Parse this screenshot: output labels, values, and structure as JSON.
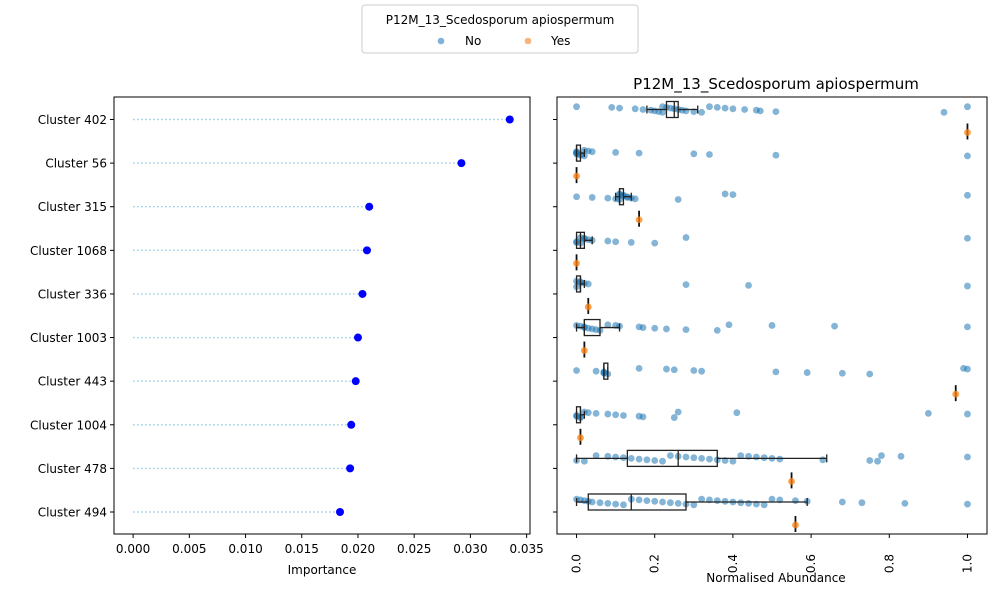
{
  "legend": {
    "title": "P12M_13_Scedosporum apiospermum",
    "entries": [
      {
        "label": "No",
        "color": "#82b1da"
      },
      {
        "label": "Yes",
        "color": "#f7b37c"
      }
    ]
  },
  "chart_data": [
    {
      "type": "lollipop",
      "title": "",
      "xlabel": "Importance",
      "ylabel": "",
      "xlim": [
        -0.0017,
        0.0353
      ],
      "xticks": [
        "0.000",
        "0.005",
        "0.010",
        "0.015",
        "0.020",
        "0.025",
        "0.030",
        "0.035"
      ],
      "grid": false,
      "point_color": "#0000ff",
      "stem_color": "#87ceeb",
      "categories": [
        "Cluster 402",
        "Cluster 56",
        "Cluster 315",
        "Cluster 1068",
        "Cluster 336",
        "Cluster 1003",
        "Cluster 443",
        "Cluster 1004",
        "Cluster 478",
        "Cluster 494"
      ],
      "values": [
        0.0335,
        0.0292,
        0.021,
        0.0208,
        0.0204,
        0.02,
        0.0198,
        0.0194,
        0.0193,
        0.0184
      ]
    },
    {
      "type": "box_strip",
      "title": "P12M_13_Scedosporum apiospermum",
      "xlabel": "Normalised Abundance",
      "ylabel": "",
      "xlim": [
        -0.05,
        1.05
      ],
      "xticks": [
        "0.0",
        "0.2",
        "0.4",
        "0.6",
        "0.8",
        "1.0"
      ],
      "grid": false,
      "colors": {
        "No": "#1f77b4",
        "Yes": "#ff7f0e"
      },
      "categories": [
        "Cluster 402",
        "Cluster 56",
        "Cluster 315",
        "Cluster 1068",
        "Cluster 336",
        "Cluster 1003",
        "Cluster 443",
        "Cluster 1004",
        "Cluster 478",
        "Cluster 494"
      ],
      "boxes": {
        "No": [
          {
            "q1": 0.23,
            "median": 0.25,
            "q3": 0.26,
            "whisker_low": 0.18,
            "whisker_high": 0.31
          },
          {
            "q1": 0.0,
            "median": 0.0,
            "q3": 0.01,
            "whisker_low": 0.0,
            "whisker_high": 0.02
          },
          {
            "q1": 0.11,
            "median": 0.11,
            "q3": 0.12,
            "whisker_low": 0.1,
            "whisker_high": 0.14
          },
          {
            "q1": 0.0,
            "median": 0.01,
            "q3": 0.02,
            "whisker_low": 0.0,
            "whisker_high": 0.04
          },
          {
            "q1": 0.0,
            "median": 0.01,
            "q3": 0.01,
            "whisker_low": 0.0,
            "whisker_high": 0.02
          },
          {
            "q1": 0.02,
            "median": 0.02,
            "q3": 0.06,
            "whisker_low": 0.0,
            "whisker_high": 0.11
          },
          {
            "q1": 0.07,
            "median": 0.07,
            "q3": 0.08,
            "whisker_low": 0.07,
            "whisker_high": 0.08
          },
          {
            "q1": 0.0,
            "median": 0.01,
            "q3": 0.01,
            "whisker_low": 0.0,
            "whisker_high": 0.02
          },
          {
            "q1": 0.13,
            "median": 0.26,
            "q3": 0.36,
            "whisker_low": 0.0,
            "whisker_high": 0.64
          },
          {
            "q1": 0.03,
            "median": 0.14,
            "q3": 0.28,
            "whisker_low": 0.0,
            "whisker_high": 0.59
          }
        ],
        "Yes": [
          1.0,
          0.0,
          0.16,
          0.0,
          0.03,
          0.02,
          0.97,
          0.01,
          0.55,
          0.56
        ]
      },
      "points_no": [
        [
          0.0,
          0.09,
          0.11,
          0.15,
          0.17,
          0.19,
          0.2,
          0.21,
          0.22,
          0.22,
          0.23,
          0.24,
          0.25,
          0.26,
          0.27,
          0.28,
          0.3,
          0.32,
          0.34,
          0.36,
          0.38,
          0.4,
          0.43,
          0.46,
          0.47,
          0.51,
          0.94,
          1.0
        ],
        [
          0.0,
          0.0,
          0.0,
          0.0,
          0.01,
          0.01,
          0.02,
          0.02,
          0.03,
          0.04,
          0.1,
          0.16,
          0.3,
          0.34,
          0.51,
          1.0
        ],
        [
          0.0,
          0.04,
          0.08,
          0.1,
          0.11,
          0.11,
          0.11,
          0.12,
          0.12,
          0.13,
          0.13,
          0.14,
          0.15,
          0.26,
          0.38,
          0.4,
          1.0
        ],
        [
          0.0,
          0.0,
          0.01,
          0.01,
          0.02,
          0.02,
          0.03,
          0.04,
          0.08,
          0.1,
          0.14,
          0.2,
          0.28,
          1.0
        ],
        [
          0.0,
          0.0,
          0.01,
          0.01,
          0.02,
          0.03,
          0.28,
          0.44,
          1.0
        ],
        [
          0.0,
          0.01,
          0.02,
          0.02,
          0.03,
          0.04,
          0.05,
          0.06,
          0.08,
          0.1,
          0.11,
          0.16,
          0.17,
          0.2,
          0.23,
          0.28,
          0.36,
          0.39,
          0.5,
          0.66,
          1.0
        ],
        [
          0.0,
          0.05,
          0.07,
          0.07,
          0.07,
          0.08,
          0.16,
          0.23,
          0.25,
          0.3,
          0.32,
          0.51,
          0.59,
          0.68,
          0.75,
          0.99,
          1.0
        ],
        [
          0.0,
          0.0,
          0.01,
          0.01,
          0.02,
          0.03,
          0.05,
          0.08,
          0.1,
          0.12,
          0.16,
          0.17,
          0.25,
          0.26,
          0.41,
          0.9,
          1.0
        ],
        [
          0.0,
          0.02,
          0.05,
          0.08,
          0.1,
          0.12,
          0.14,
          0.16,
          0.18,
          0.2,
          0.22,
          0.24,
          0.26,
          0.28,
          0.3,
          0.32,
          0.34,
          0.36,
          0.38,
          0.4,
          0.42,
          0.44,
          0.46,
          0.48,
          0.5,
          0.52,
          0.63,
          0.75,
          0.77,
          0.78,
          0.83,
          1.0
        ],
        [
          0.0,
          0.01,
          0.02,
          0.03,
          0.04,
          0.06,
          0.08,
          0.1,
          0.12,
          0.14,
          0.16,
          0.18,
          0.2,
          0.22,
          0.24,
          0.26,
          0.28,
          0.3,
          0.32,
          0.34,
          0.36,
          0.38,
          0.4,
          0.42,
          0.44,
          0.46,
          0.48,
          0.5,
          0.52,
          0.56,
          0.59,
          0.68,
          0.73,
          0.84,
          1.0
        ]
      ]
    }
  ]
}
